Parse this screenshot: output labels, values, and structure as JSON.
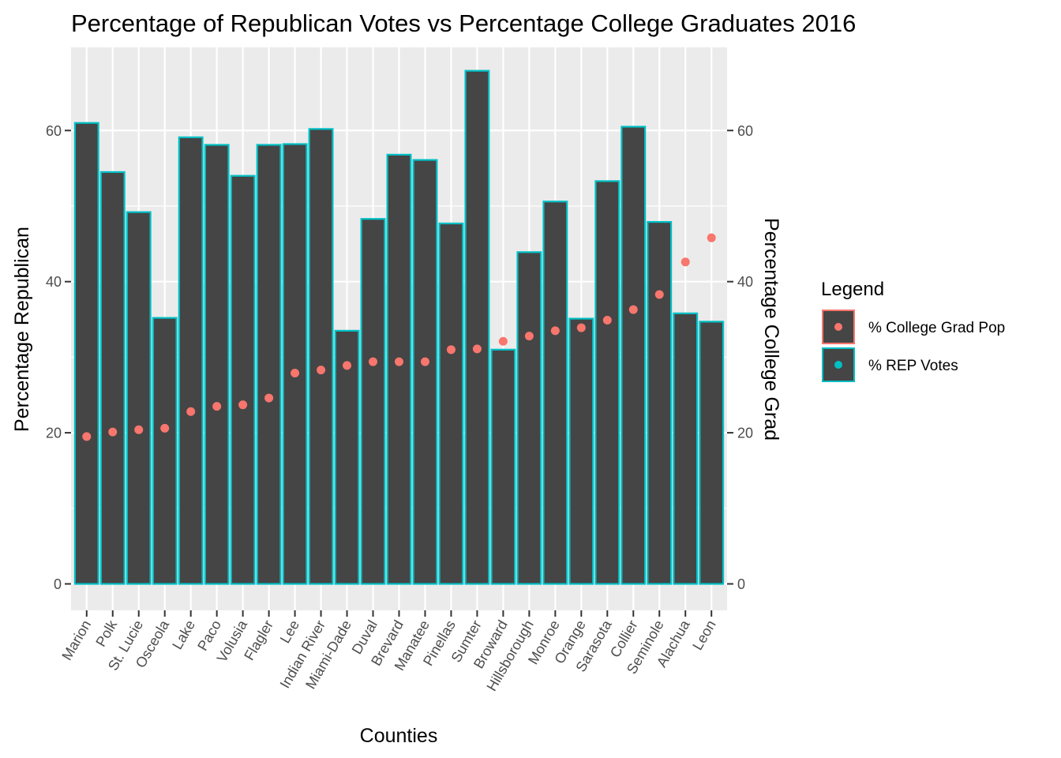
{
  "chart_data": {
    "type": "bar",
    "title": "Percentage of Republican Votes vs Percentage College Graduates 2016",
    "xlabel": "Counties",
    "ylabel": "Percentage Republican",
    "ylabel_right": "Percentage College Grad",
    "ylim": [
      -3.5,
      71
    ],
    "yticks": [
      0,
      20,
      40,
      60
    ],
    "grid": true,
    "legend_position": "right",
    "legend": {
      "title": "Legend",
      "items": [
        {
          "label": "% College Grad Pop",
          "key_border": "#F8766D",
          "dot_color": "#F8766D"
        },
        {
          "label": "% REP Votes",
          "key_border": "#00BFC4",
          "dot_color": "#00BFC4"
        }
      ]
    },
    "categories": [
      "Marion",
      "Polk",
      "St. Lucie",
      "Osceola",
      "Lake",
      "Paco",
      "Volusia",
      "Flagler",
      "Lee",
      "Indian River",
      "Miami-Dade",
      "Duval",
      "Brevard",
      "Manatee",
      "Pinellas",
      "Sumter",
      "Broward",
      "Hillsborough",
      "Monroe",
      "Orange",
      "Sarasota",
      "Collier",
      "Seminole",
      "Alachua",
      "Leon"
    ],
    "series": [
      {
        "name": "% REP Votes",
        "type": "bar",
        "values": [
          61.0,
          54.5,
          49.2,
          35.2,
          59.1,
          58.1,
          54.0,
          58.1,
          58.2,
          60.2,
          33.5,
          48.3,
          56.8,
          56.1,
          47.7,
          67.9,
          31.0,
          43.9,
          50.6,
          35.1,
          53.3,
          60.5,
          47.9,
          35.8,
          34.7
        ]
      },
      {
        "name": "% College Grad Pop",
        "type": "scatter",
        "values": [
          19.5,
          20.1,
          20.4,
          20.6,
          22.8,
          23.5,
          23.7,
          24.6,
          27.9,
          28.3,
          28.9,
          29.4,
          29.4,
          29.4,
          31.0,
          31.1,
          32.1,
          32.8,
          33.5,
          33.9,
          34.9,
          36.3,
          38.3,
          42.6,
          45.8
        ]
      }
    ],
    "colors": {
      "panel_bg": "#EBEBEB",
      "grid": "#FFFFFF",
      "bar_fill": "#454545",
      "bar_outline": "#00BFC4",
      "point": "#F8766D",
      "tick": "#333333",
      "tick_text": "#4D4D4D"
    }
  }
}
